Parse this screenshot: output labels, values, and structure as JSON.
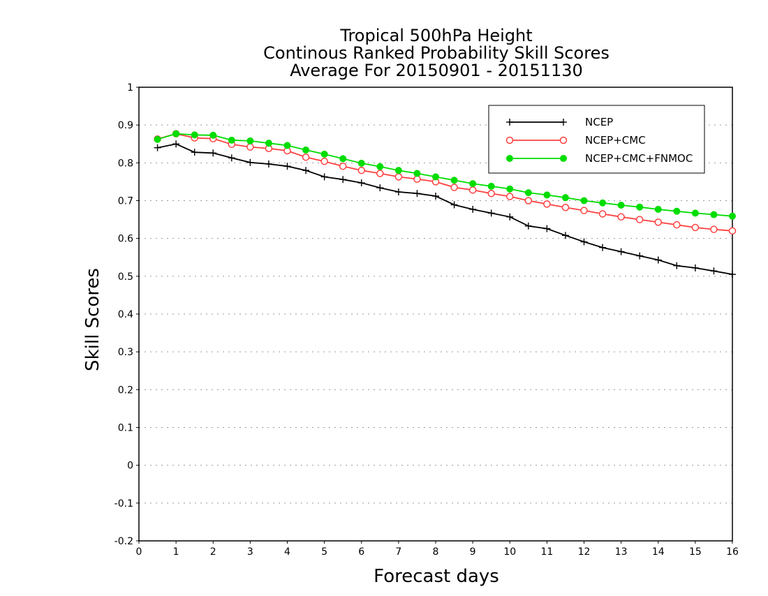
{
  "chart_data": {
    "type": "line",
    "title_lines": [
      "Tropical 500hPa Height",
      "Continous Ranked Probability Skill Scores",
      "Average For 20150901 - 20151130"
    ],
    "xlabel": "Forecast days",
    "ylabel": "Skill Scores",
    "xlim": [
      0,
      16
    ],
    "ylim": [
      -0.2,
      1
    ],
    "x_ticks": [
      0,
      1,
      2,
      3,
      4,
      5,
      6,
      7,
      8,
      9,
      10,
      11,
      12,
      13,
      14,
      15,
      16
    ],
    "x_tick_labels": [
      "0",
      "1",
      "2",
      "3",
      "4",
      "5",
      "6",
      "7",
      "8",
      "9",
      "10",
      "11",
      "12",
      "13",
      "14",
      "15",
      "16"
    ],
    "y_ticks": [
      -0.2,
      -0.1,
      0,
      0.1,
      0.2,
      0.3,
      0.4,
      0.5,
      0.6,
      0.7,
      0.8,
      0.9,
      1
    ],
    "y_tick_labels": [
      "-0.2",
      "-0.1",
      "0",
      "0.1",
      "0.2",
      "0.3",
      "0.4",
      "0.5",
      "0.6",
      "0.7",
      "0.8",
      "0.9",
      "1"
    ],
    "grid": "horizontal dotted",
    "legend_position": "top-right",
    "x": [
      0.5,
      1.0,
      1.5,
      2.0,
      2.5,
      3.0,
      3.5,
      4.0,
      4.5,
      5.0,
      5.5,
      6.0,
      6.5,
      7.0,
      7.5,
      8.0,
      8.5,
      9.0,
      9.5,
      10.0,
      10.5,
      11.0,
      11.5,
      12.0,
      12.5,
      13.0,
      13.5,
      14.0,
      14.5,
      15.0,
      15.5,
      16.0
    ],
    "series": [
      {
        "name": "NCEP",
        "color": "#000000",
        "marker": "plus",
        "values": [
          0.84,
          0.85,
          0.828,
          0.826,
          0.813,
          0.801,
          0.797,
          0.791,
          0.78,
          0.763,
          0.756,
          0.747,
          0.734,
          0.723,
          0.719,
          0.712,
          0.689,
          0.677,
          0.667,
          0.657,
          0.633,
          0.626,
          0.608,
          0.591,
          0.576,
          0.565,
          0.554,
          0.543,
          0.528,
          0.522,
          0.514,
          0.505
        ]
      },
      {
        "name": "NCEP+CMC",
        "color": "#ff4040",
        "marker": "open-circle",
        "values": [
          0.863,
          0.877,
          0.866,
          0.864,
          0.849,
          0.842,
          0.838,
          0.832,
          0.815,
          0.804,
          0.791,
          0.78,
          0.772,
          0.763,
          0.757,
          0.75,
          0.735,
          0.728,
          0.719,
          0.711,
          0.7,
          0.691,
          0.682,
          0.674,
          0.665,
          0.657,
          0.65,
          0.643,
          0.636,
          0.629,
          0.624,
          0.62
        ]
      },
      {
        "name": "NCEP+CMC+FNMOC",
        "color": "#00dd00",
        "marker": "filled-circle",
        "values": [
          0.862,
          0.877,
          0.874,
          0.873,
          0.86,
          0.858,
          0.852,
          0.846,
          0.834,
          0.823,
          0.811,
          0.799,
          0.79,
          0.78,
          0.772,
          0.763,
          0.754,
          0.745,
          0.738,
          0.731,
          0.721,
          0.715,
          0.708,
          0.7,
          0.694,
          0.688,
          0.683,
          0.677,
          0.672,
          0.667,
          0.663,
          0.659
        ]
      }
    ]
  }
}
